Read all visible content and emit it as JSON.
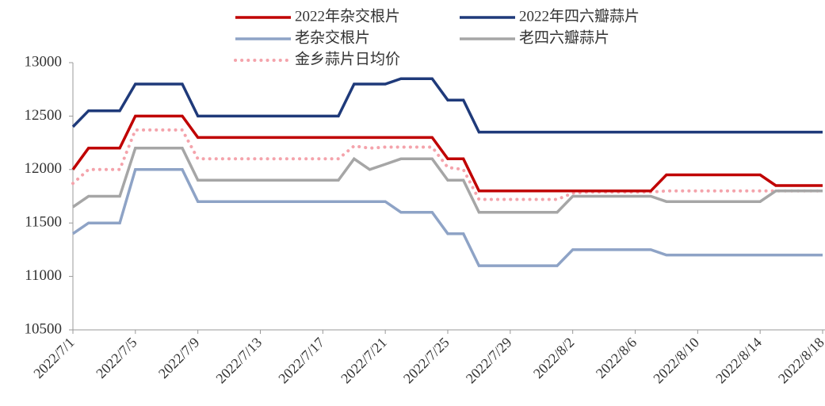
{
  "chart_data": {
    "type": "line",
    "categories": [
      "2022/7/1",
      null,
      null,
      null,
      "2022/7/5",
      null,
      null,
      null,
      "2022/7/9",
      null,
      null,
      null,
      "2022/7/13",
      null,
      null,
      null,
      "2022/7/17",
      null,
      null,
      null,
      "2022/7/21",
      null,
      null,
      null,
      "2022/7/25",
      null,
      null,
      null,
      "2022/7/29",
      null,
      null,
      null,
      "2022/8/2",
      null,
      null,
      null,
      "2022/8/6",
      null,
      null,
      null,
      "2022/8/10",
      null,
      null,
      null,
      "2022/8/14",
      null,
      null,
      null,
      "2022/8/18"
    ],
    "series": [
      {
        "name": "2022年杂交根片",
        "color": "#c00000",
        "line_style": "solid",
        "values": [
          12000,
          12200,
          12200,
          12200,
          12500,
          12500,
          12500,
          12500,
          12300,
          12300,
          12300,
          12300,
          12300,
          12300,
          12300,
          12300,
          12300,
          12300,
          12300,
          12300,
          12300,
          12300,
          12300,
          12300,
          12100,
          12100,
          11800,
          11800,
          11800,
          11800,
          11800,
          11800,
          11800,
          11800,
          11800,
          11800,
          11800,
          11800,
          11950,
          11950,
          11950,
          11950,
          11950,
          11950,
          11950,
          11850,
          11850,
          11850,
          11850
        ]
      },
      {
        "name": "2022年四六瓣蒜片",
        "color": "#1f3a7a",
        "line_style": "solid",
        "values": [
          12400,
          12550,
          12550,
          12550,
          12800,
          12800,
          12800,
          12800,
          12500,
          12500,
          12500,
          12500,
          12500,
          12500,
          12500,
          12500,
          12500,
          12500,
          12800,
          12800,
          12800,
          12850,
          12850,
          12850,
          12650,
          12650,
          12350,
          12350,
          12350,
          12350,
          12350,
          12350,
          12350,
          12350,
          12350,
          12350,
          12350,
          12350,
          12350,
          12350,
          12350,
          12350,
          12350,
          12350,
          12350,
          12350,
          12350,
          12350,
          12350
        ]
      },
      {
        "name": "老杂交根片",
        "color": "#8ea3c6",
        "line_style": "solid",
        "values": [
          11400,
          11500,
          11500,
          11500,
          12000,
          12000,
          12000,
          12000,
          11700,
          11700,
          11700,
          11700,
          11700,
          11700,
          11700,
          11700,
          11700,
          11700,
          11700,
          11700,
          11700,
          11600,
          11600,
          11600,
          11400,
          11400,
          11100,
          11100,
          11100,
          11100,
          11100,
          11100,
          11250,
          11250,
          11250,
          11250,
          11250,
          11250,
          11200,
          11200,
          11200,
          11200,
          11200,
          11200,
          11200,
          11200,
          11200,
          11200,
          11200
        ]
      },
      {
        "name": "老四六瓣蒜片",
        "color": "#a6a6a6",
        "line_style": "solid",
        "values": [
          11650,
          11750,
          11750,
          11750,
          12200,
          12200,
          12200,
          12200,
          11900,
          11900,
          11900,
          11900,
          11900,
          11900,
          11900,
          11900,
          11900,
          11900,
          12100,
          12000,
          12050,
          12100,
          12100,
          12100,
          11900,
          11900,
          11600,
          11600,
          11600,
          11600,
          11600,
          11600,
          11750,
          11750,
          11750,
          11750,
          11750,
          11750,
          11700,
          11700,
          11700,
          11700,
          11700,
          11700,
          11700,
          11800,
          11800,
          11800,
          11800
        ]
      },
      {
        "name": "金乡蒜片日均价",
        "color": "#f4a3ab",
        "line_style": "dotted",
        "values": [
          11870,
          12000,
          12000,
          12000,
          12370,
          12370,
          12370,
          12370,
          12100,
          12100,
          12100,
          12100,
          12100,
          12100,
          12100,
          12100,
          12100,
          12100,
          12220,
          12200,
          12210,
          12210,
          12210,
          12210,
          12020,
          12000,
          11720,
          11720,
          11720,
          11720,
          11720,
          11720,
          11780,
          11790,
          11790,
          11790,
          11790,
          11790,
          11800,
          11800,
          11800,
          11800,
          11800,
          11800,
          11800,
          11800,
          11800,
          11800,
          11800
        ]
      }
    ],
    "ylim": [
      10500,
      13000
    ],
    "yticks": [
      10500,
      11000,
      11500,
      12000,
      12500,
      13000
    ],
    "grid": false
  }
}
